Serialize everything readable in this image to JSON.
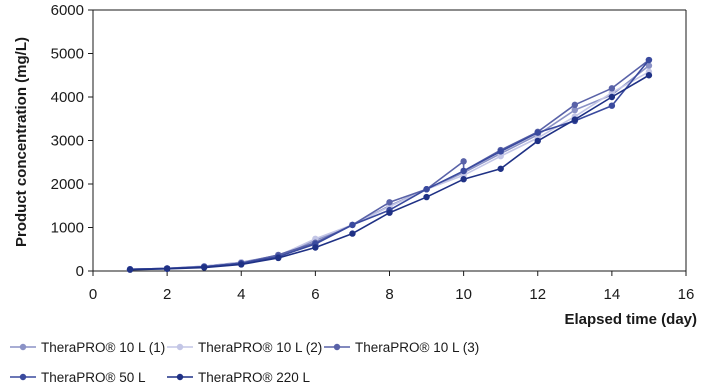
{
  "chart_data": {
    "type": "line",
    "xlabel": "Elapsed time (day)",
    "ylabel": "Product concentration (mg/L)",
    "xlim": [
      0,
      16
    ],
    "ylim": [
      0,
      6000
    ],
    "xticks": [
      0,
      2,
      4,
      6,
      8,
      10,
      12,
      14,
      16
    ],
    "yticks": [
      0,
      1000,
      2000,
      3000,
      4000,
      5000,
      6000
    ],
    "grid": false,
    "legend_position": "bottom-left",
    "series": [
      {
        "name": "TheraPRO® 10 L (1)",
        "color": "#8b92c6",
        "x": [
          1,
          2,
          3,
          4,
          5,
          6,
          7,
          8,
          9,
          10,
          11,
          12,
          13,
          14,
          15
        ],
        "y": [
          40,
          60,
          110,
          200,
          360,
          700,
          1060,
          1500,
          1880,
          2260,
          2700,
          3130,
          3700,
          4050,
          4720
        ]
      },
      {
        "name": "TheraPRO® 10 L (2)",
        "color": "#c3c6e6",
        "x": [
          1,
          2,
          3,
          4,
          5,
          6,
          7,
          8,
          9,
          10,
          11,
          12,
          13,
          14,
          15
        ],
        "y": [
          40,
          60,
          110,
          190,
          350,
          740,
          1060,
          1480,
          1880,
          2200,
          2640,
          3060,
          3550,
          4100,
          4580
        ]
      },
      {
        "name": "TheraPRO® 10 L (3)",
        "color": "#5962a8",
        "x": [
          1,
          2,
          3,
          4,
          5,
          6,
          7,
          8,
          9,
          10,
          10,
          11,
          12,
          13,
          14,
          15
        ],
        "y": [
          40,
          60,
          100,
          180,
          370,
          650,
          1060,
          1580,
          1880,
          2520,
          2300,
          2780,
          3200,
          3820,
          4200,
          4850
        ]
      },
      {
        "name": "TheraPRO® 50 L",
        "color": "#3a4a9e",
        "x": [
          1,
          2,
          3,
          4,
          5,
          6,
          7,
          8,
          9,
          10,
          11,
          12,
          13,
          14,
          15
        ],
        "y": [
          40,
          60,
          100,
          180,
          330,
          620,
          1060,
          1400,
          1880,
          2300,
          2750,
          3180,
          3450,
          3800,
          4850
        ]
      },
      {
        "name": "TheraPRO® 220 L",
        "color": "#1f3185",
        "x": [
          1,
          2,
          3,
          4,
          5,
          6,
          7,
          8,
          9,
          10,
          11,
          12,
          13,
          14,
          15
        ],
        "y": [
          30,
          50,
          80,
          150,
          300,
          540,
          860,
          1340,
          1700,
          2110,
          2350,
          2990,
          3480,
          4000,
          4500
        ]
      }
    ]
  }
}
